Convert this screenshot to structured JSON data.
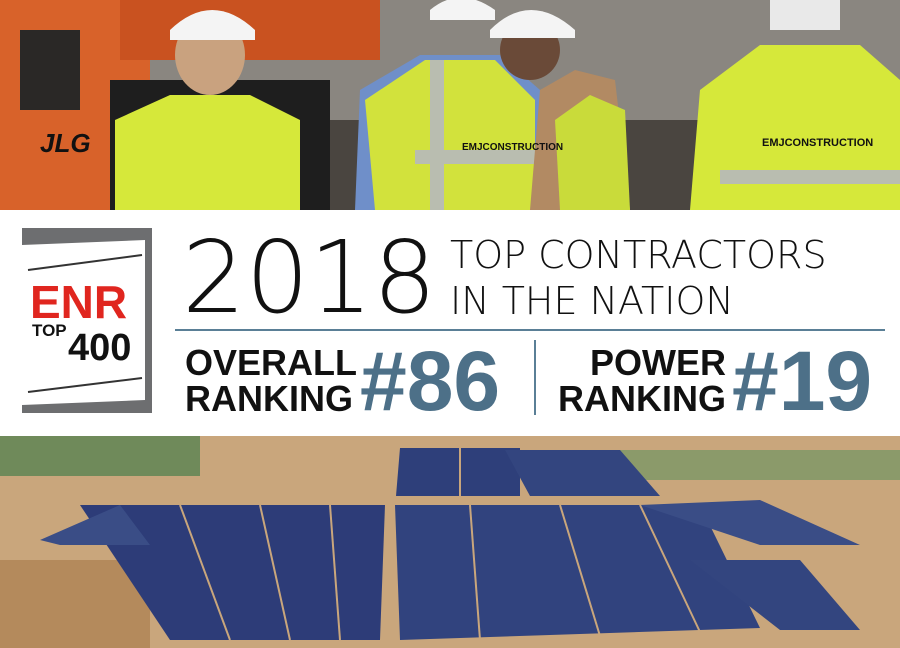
{
  "photo_top": {
    "machine_label": "JLG",
    "vest_label": "EMJCONSTRUCTION"
  },
  "logo": {
    "brand": "ENR",
    "top": "TOP",
    "number": "400"
  },
  "headline": {
    "year": "2018",
    "line1": "TOP CONTRACTORS",
    "line2": "IN THE NATION"
  },
  "rankings": [
    {
      "label1": "OVERALL",
      "label2": "RANKING",
      "rank": "#86"
    },
    {
      "label1": "POWER",
      "label2": "RANKING",
      "rank": "#19"
    }
  ]
}
